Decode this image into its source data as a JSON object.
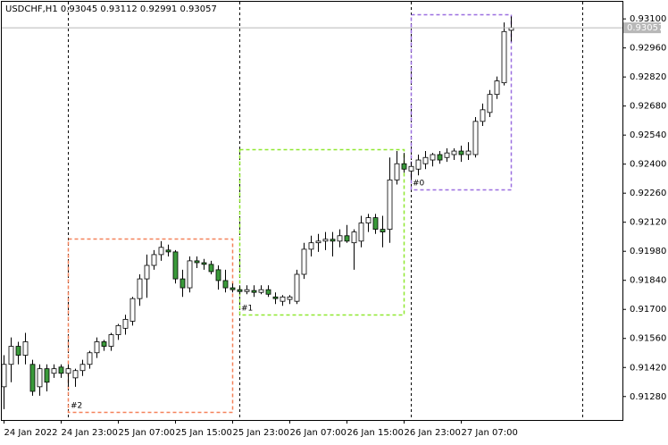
{
  "chart_data": {
    "type": "candlestick",
    "title": "USDCHF,H1  0.93045 0.93112 0.92991 0.93057",
    "categories": [
      "24 Jan 2022",
      null,
      null,
      null,
      null,
      null,
      null,
      null,
      "24 Jan 23:00",
      null,
      null,
      null,
      null,
      null,
      null,
      null,
      "25 Jan 07:00",
      null,
      null,
      null,
      null,
      null,
      null,
      null,
      "25 Jan 15:00",
      null,
      null,
      null,
      null,
      null,
      null,
      null,
      "25 Jan 23:00",
      null,
      null,
      null,
      null,
      null,
      null,
      null,
      "26 Jan 07:00",
      null,
      null,
      null,
      null,
      null,
      null,
      null,
      "26 Jan 15:00",
      null,
      null,
      null,
      null,
      null,
      null,
      null,
      "26 Jan 23:00",
      null,
      null,
      null,
      null,
      null,
      null,
      null,
      "27 Jan 07:00",
      null,
      null,
      null,
      null,
      null,
      null,
      null
    ],
    "open": [
      0.91327,
      0.91435,
      0.91522,
      0.91479,
      0.91435,
      0.91327,
      0.91414,
      0.91392,
      0.91422,
      0.91392,
      0.9137,
      0.91405,
      0.91435,
      0.91491,
      0.91544,
      0.91522,
      0.91578,
      0.91609,
      0.91643,
      0.91752,
      0.91847,
      0.91912,
      0.91964,
      0.91986,
      0.91977,
      0.91847,
      0.91804,
      0.91934,
      0.91925,
      0.91917,
      0.91891,
      0.91839,
      0.91804,
      0.91795,
      0.91786,
      0.91791,
      0.91782,
      0.91795,
      0.9176,
      0.91739,
      0.91748,
      0.91739,
      0.91869,
      0.9199,
      0.92021,
      0.92029,
      0.92038,
      0.92029,
      0.92055,
      0.92021,
      0.92029,
      0.92116,
      0.92142,
      0.92086,
      0.92086,
      0.92324,
      0.92402,
      0.92367,
      0.92376,
      0.92402,
      0.9242,
      0.92446,
      0.92432,
      0.92446,
      0.92463,
      0.92446,
      0.92446,
      0.92606,
      0.92649,
      0.92736,
      0.92792,
      0.93045
    ],
    "high": [
      0.91479,
      0.91565,
      0.91544,
      0.91587,
      0.91457,
      0.91435,
      0.91435,
      0.91435,
      0.91435,
      0.91435,
      0.91414,
      0.91457,
      0.915,
      0.91565,
      0.91553,
      0.91587,
      0.9163,
      0.91674,
      0.9176,
      0.91869,
      0.91964,
      0.91986,
      0.92029,
      0.92012,
      0.91986,
      0.91891,
      0.91955,
      0.91955,
      0.91943,
      0.91934,
      0.91912,
      0.91891,
      0.91825,
      0.91816,
      0.91816,
      0.91816,
      0.91816,
      0.91816,
      0.91782,
      0.91769,
      0.91769,
      0.91891,
      0.92021,
      0.92055,
      0.92064,
      0.92073,
      0.92073,
      0.92086,
      0.92107,
      0.92086,
      0.92151,
      0.9216,
      0.9216,
      0.92151,
      0.92432,
      0.92463,
      0.92454,
      0.92411,
      0.92446,
      0.92463,
      0.92454,
      0.92463,
      0.92476,
      0.92476,
      0.92489,
      0.92506,
      0.92627,
      0.92692,
      0.92757,
      0.92822,
      0.93083,
      0.93112
    ],
    "low": [
      0.91219,
      0.91349,
      0.91435,
      0.91435,
      0.91284,
      0.91284,
      0.91305,
      0.9137,
      0.9137,
      0.91327,
      0.91327,
      0.91379,
      0.91414,
      0.91466,
      0.915,
      0.915,
      0.91553,
      0.91578,
      0.91622,
      0.91717,
      0.91756,
      0.91891,
      0.91934,
      0.91955,
      0.91825,
      0.9176,
      0.91782,
      0.91899,
      0.91891,
      0.91869,
      0.91795,
      0.91782,
      0.91782,
      0.91773,
      0.91773,
      0.9176,
      0.91773,
      0.9176,
      0.91726,
      0.91717,
      0.91726,
      0.91726,
      0.91847,
      0.91955,
      0.91977,
      0.91986,
      0.91955,
      0.91999,
      0.92021,
      0.91891,
      0.91999,
      0.92073,
      0.92064,
      0.91999,
      0.92021,
      0.92302,
      0.92359,
      0.92324,
      0.92346,
      0.92376,
      0.92389,
      0.92402,
      0.92411,
      0.9242,
      0.92411,
      0.9242,
      0.92432,
      0.92584,
      0.92627,
      0.92714,
      0.92779,
      0.92991
    ],
    "close": [
      0.91435,
      0.91522,
      0.91479,
      0.91544,
      0.91305,
      0.91414,
      0.91349,
      0.91414,
      0.91392,
      0.91414,
      0.91405,
      0.91435,
      0.91491,
      0.91544,
      0.91522,
      0.91578,
      0.91622,
      0.91652,
      0.91752,
      0.91847,
      0.91912,
      0.91964,
      0.91999,
      0.91977,
      0.91847,
      0.91804,
      0.91934,
      0.91925,
      0.91917,
      0.91882,
      0.91839,
      0.91804,
      0.91795,
      0.91786,
      0.91795,
      0.91782,
      0.91795,
      0.91773,
      0.91752,
      0.9176,
      0.9176,
      0.91869,
      0.9199,
      0.92021,
      0.92029,
      0.92038,
      0.92029,
      0.92055,
      0.92029,
      0.92073,
      0.92116,
      0.92142,
      0.92086,
      0.92073,
      0.92324,
      0.92402,
      0.92376,
      0.92389,
      0.9242,
      0.92432,
      0.92446,
      0.9242,
      0.92454,
      0.92463,
      0.92446,
      0.92463,
      0.92606,
      0.92662,
      0.92736,
      0.92801,
      0.93039,
      0.93057
    ],
    "up_color": "#ffffff",
    "down_color": "#3a9a3a",
    "ylim": [
      0.91167,
      0.93191
    ],
    "yticks": [
      {
        "value": 0.931,
        "label": "0.93100"
      },
      {
        "value": 0.9296,
        "label": "0.92960"
      },
      {
        "value": 0.9282,
        "label": "0.92820"
      },
      {
        "value": 0.9268,
        "label": "0.92680"
      },
      {
        "value": 0.9254,
        "label": "0.92540"
      },
      {
        "value": 0.924,
        "label": "0.92400"
      },
      {
        "value": 0.9226,
        "label": "0.92260"
      },
      {
        "value": 0.9212,
        "label": "0.92120"
      },
      {
        "value": 0.9198,
        "label": "0.91980"
      },
      {
        "value": 0.9184,
        "label": "0.91840"
      },
      {
        "value": 0.917,
        "label": "0.91700"
      },
      {
        "value": 0.9156,
        "label": "0.91560"
      },
      {
        "value": 0.9142,
        "label": "0.91420"
      },
      {
        "value": 0.9128,
        "label": "0.91280"
      }
    ],
    "boxes": [
      {
        "label": "#2",
        "color": "#f4825a"
      },
      {
        "label": "#1",
        "color": "#8fe830"
      },
      {
        "label": "#0",
        "color": "#9b6fe0"
      }
    ]
  }
}
